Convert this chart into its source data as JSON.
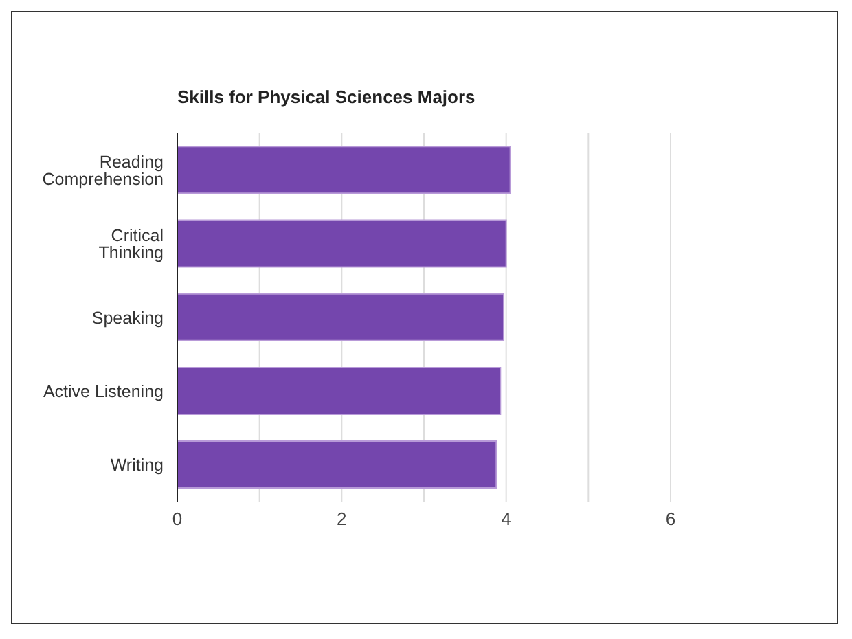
{
  "chart_data": {
    "type": "bar",
    "orientation": "horizontal",
    "title": "Skills for Physical Sciences Majors",
    "categories": [
      "Reading Comprehension",
      "Critical Thinking",
      "Speaking",
      "Active Listening",
      "Writing"
    ],
    "values": [
      4.05,
      4.0,
      3.97,
      3.93,
      3.88
    ],
    "color": "#7446ad",
    "xlim": [
      0,
      6
    ],
    "xticks": [
      0,
      {
        "value": 1,
        "label": null
      },
      2,
      {
        "value": 3,
        "label": null
      },
      4,
      {
        "value": 5,
        "label": null
      },
      6
    ],
    "grid": "x",
    "legend": false
  }
}
